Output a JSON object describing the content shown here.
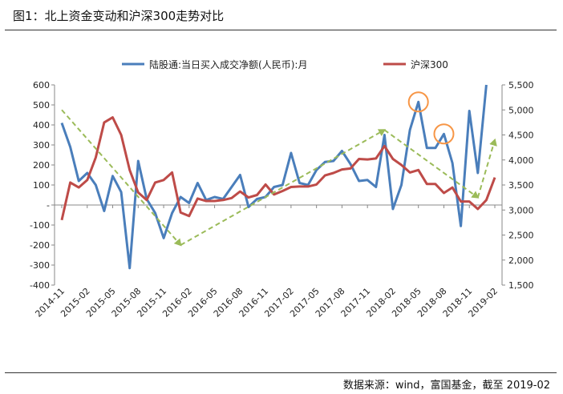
{
  "header": {
    "title": "图1：北上资金变动和沪深300走势对比"
  },
  "footer": {
    "source": "数据来源：wind，富国基金，截至 2019-02"
  },
  "chart_data": {
    "type": "line",
    "legend_placement": "top",
    "grid": false,
    "x": [
      "2014-11",
      "2014-12",
      "2015-01",
      "2015-02",
      "2015-03",
      "2015-04",
      "2015-05",
      "2015-06",
      "2015-07",
      "2015-08",
      "2015-09",
      "2015-10",
      "2015-11",
      "2015-12",
      "2016-01",
      "2016-02",
      "2016-03",
      "2016-04",
      "2016-05",
      "2016-06",
      "2016-07",
      "2016-08",
      "2016-09",
      "2016-10",
      "2016-11",
      "2016-12",
      "2017-01",
      "2017-02",
      "2017-03",
      "2017-04",
      "2017-05",
      "2017-06",
      "2017-07",
      "2017-08",
      "2017-09",
      "2017-10",
      "2017-11",
      "2017-12",
      "2018-01",
      "2018-02",
      "2018-03",
      "2018-04",
      "2018-05",
      "2018-06",
      "2018-07",
      "2018-08",
      "2018-09",
      "2018-10",
      "2018-11",
      "2018-12",
      "2019-01",
      "2019-02"
    ],
    "x_tick_labels": [
      "2014-11",
      "2015-02",
      "2015-05",
      "2015-08",
      "2015-11",
      "2016-02",
      "2016-05",
      "2016-08",
      "2016-11",
      "2017-02",
      "2017-05",
      "2017-08",
      "2017-11",
      "2018-02",
      "2018-05",
      "2018-08",
      "2018-11",
      "2019-02"
    ],
    "y_left": {
      "ylim": [
        -400,
        600
      ],
      "ticks": [
        -400,
        -300,
        -200,
        -100,
        0,
        100,
        200,
        300,
        400,
        500,
        600
      ],
      "tick_labels": [
        "-400",
        "-300",
        "-200",
        "-100",
        "-",
        "100",
        "200",
        "300",
        "400",
        "500",
        "600"
      ]
    },
    "y_right": {
      "ylim": [
        1500,
        5500
      ],
      "ticks": [
        1500,
        2000,
        2500,
        3000,
        3500,
        4000,
        4500,
        5000,
        5500
      ],
      "tick_labels": [
        "1,500",
        "2,000",
        "2,500",
        "3,000",
        "3,500",
        "4,000",
        "4,500",
        "5,000",
        "5,500"
      ]
    },
    "series": [
      {
        "name": "陆股通:当日买入成交净额(人民币):月",
        "axis": "left",
        "color": "#4a7ebb",
        "values": [
          410,
          290,
          120,
          160,
          100,
          -30,
          145,
          65,
          -315,
          220,
          30,
          -40,
          -165,
          -40,
          40,
          10,
          110,
          25,
          40,
          30,
          90,
          150,
          -10,
          30,
          40,
          90,
          100,
          260,
          110,
          100,
          175,
          215,
          220,
          270,
          205,
          120,
          125,
          90,
          350,
          -20,
          100,
          375,
          515,
          285,
          285,
          355,
          210,
          -105,
          470,
          160,
          600,
          null
        ]
      },
      {
        "name": "沪深300",
        "axis": "right",
        "color": "#be4b48",
        "values": [
          2800,
          3550,
          3450,
          3600,
          4050,
          4750,
          4850,
          4500,
          3800,
          3350,
          3200,
          3550,
          3600,
          3750,
          2950,
          2880,
          3230,
          3180,
          3180,
          3200,
          3240,
          3370,
          3250,
          3300,
          3510,
          3310,
          3380,
          3460,
          3470,
          3470,
          3510,
          3690,
          3740,
          3810,
          3830,
          4020,
          4010,
          4030,
          4280,
          4020,
          3900,
          3750,
          3800,
          3520,
          3520,
          3340,
          3450,
          3170,
          3170,
          3020,
          3200,
          3650
        ]
      }
    ],
    "trend_arrows": [
      {
        "from": [
          "2014-11",
          5000
        ],
        "to": [
          "2016-01",
          2300
        ]
      },
      {
        "from": [
          "2016-01",
          2300
        ],
        "to": [
          "2018-01",
          4600
        ]
      },
      {
        "from": [
          "2018-01",
          4600
        ],
        "to": [
          "2018-12",
          3250
        ]
      },
      {
        "from": [
          "2018-12",
          3250
        ],
        "to": [
          "2019-02",
          4400
        ]
      }
    ],
    "arrow_color": "#9bbb59",
    "highlights": [
      {
        "x": "2018-05",
        "y": 515,
        "axis": "left"
      },
      {
        "x": "2018-08",
        "y": 355,
        "axis": "left"
      }
    ],
    "highlight_color": "#f79646"
  }
}
